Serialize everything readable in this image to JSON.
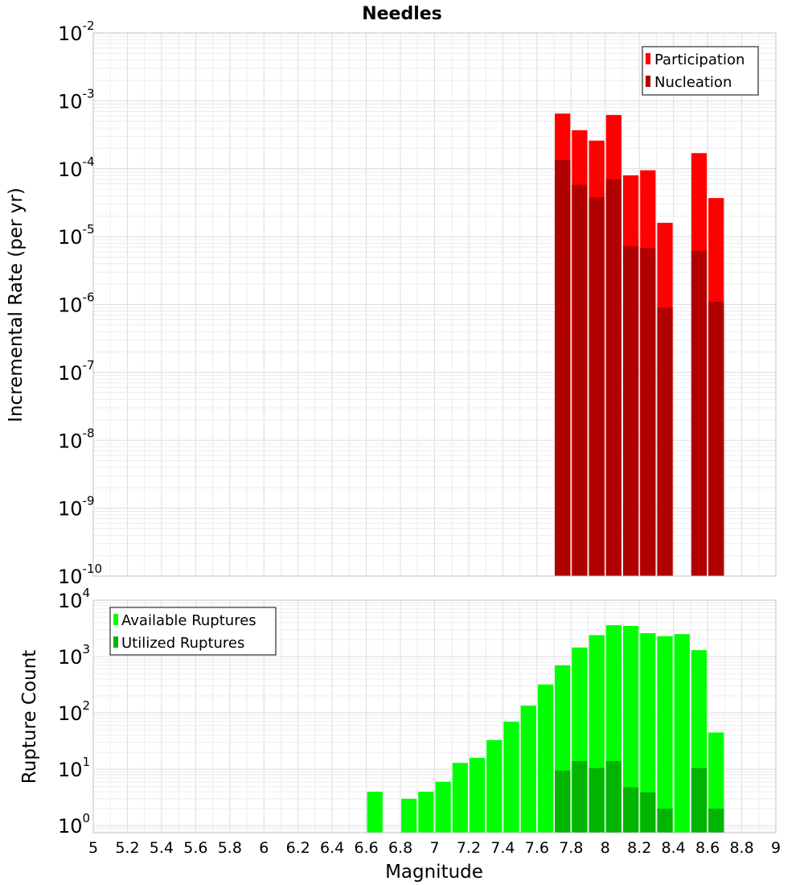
{
  "chart_data": [
    {
      "type": "bar",
      "title": "Needles",
      "xlabel": "",
      "ylabel": "Incremental Rate (per yr)",
      "yscale": "log",
      "ylim": [
        1e-10,
        0.01
      ],
      "xlim": [
        5,
        9
      ],
      "bin_width": 0.1,
      "bar_mode": "overlay",
      "y_ticks": [
        {
          "base": "10",
          "exp": "-10"
        },
        {
          "base": "10",
          "exp": "-9"
        },
        {
          "base": "10",
          "exp": "-8"
        },
        {
          "base": "10",
          "exp": "-7"
        },
        {
          "base": "10",
          "exp": "-6"
        },
        {
          "base": "10",
          "exp": "-5"
        },
        {
          "base": "10",
          "exp": "-4"
        },
        {
          "base": "10",
          "exp": "-3"
        },
        {
          "base": "10",
          "exp": "-2"
        }
      ],
      "x": [
        7.75,
        7.85,
        7.95,
        8.05,
        8.15,
        8.25,
        8.35,
        8.45,
        8.55,
        8.65
      ],
      "series": [
        {
          "name": "Participation",
          "color": "#ff0000",
          "values": [
            0.00065,
            0.00037,
            0.00026,
            0.00062,
            8e-05,
            9.5e-05,
            1.6e-05,
            0,
            0.00017,
            3.7e-05
          ]
        },
        {
          "name": "Nucleation",
          "color": "#b00000",
          "values": [
            0.000135,
            5.8e-05,
            3.8e-05,
            7e-05,
            7.2e-06,
            6.8e-06,
            9e-07,
            0,
            6.2e-06,
            1.1e-06
          ]
        }
      ],
      "legend": {
        "position": "top-right",
        "entries": [
          "Participation",
          "Nucleation"
        ]
      }
    },
    {
      "type": "bar",
      "title": "",
      "xlabel": "Magnitude",
      "ylabel": "Rupture Count",
      "yscale": "log",
      "ylim": [
        0.75,
        10000
      ],
      "xlim": [
        5,
        9
      ],
      "bin_width": 0.1,
      "bar_mode": "overlay",
      "x_ticks": [
        "5",
        "5.2",
        "5.4",
        "5.6",
        "5.8",
        "6",
        "6.2",
        "6.4",
        "6.6",
        "6.8",
        "7",
        "7.2",
        "7.4",
        "7.6",
        "7.8",
        "8",
        "8.2",
        "8.4",
        "8.6",
        "8.8",
        "9"
      ],
      "y_ticks": [
        {
          "base": "10",
          "exp": "0"
        },
        {
          "base": "10",
          "exp": "1"
        },
        {
          "base": "10",
          "exp": "2"
        },
        {
          "base": "10",
          "exp": "3"
        },
        {
          "base": "10",
          "exp": "4"
        }
      ],
      "x": [
        6.65,
        6.75,
        6.85,
        6.95,
        7.05,
        7.15,
        7.25,
        7.35,
        7.45,
        7.55,
        7.65,
        7.75,
        7.85,
        7.95,
        8.05,
        8.15,
        8.25,
        8.35,
        8.45,
        8.55,
        8.65
      ],
      "series": [
        {
          "name": "Available Ruptures",
          "color": "#00ff00",
          "values": [
            4,
            0,
            3,
            4,
            6,
            13,
            16,
            33,
            70,
            135,
            320,
            700,
            1450,
            2400,
            3600,
            3500,
            2600,
            2300,
            2500,
            1300,
            45
          ]
        },
        {
          "name": "Utilized Ruptures",
          "color": "#00b400",
          "values": [
            0,
            0,
            0,
            0,
            0,
            0,
            0,
            0,
            0,
            0,
            0,
            9.5,
            14,
            10.5,
            14,
            4.8,
            3.9,
            2,
            0,
            10.5,
            2
          ]
        }
      ],
      "legend": {
        "position": "top-left",
        "entries": [
          "Available Ruptures",
          "Utilized Ruptures"
        ]
      }
    }
  ]
}
